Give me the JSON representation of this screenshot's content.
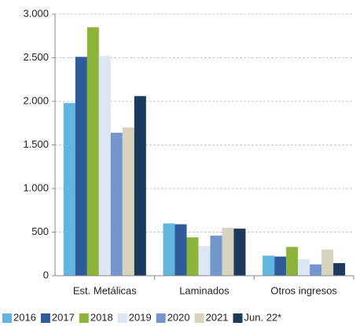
{
  "chart_data": {
    "type": "bar",
    "categories": [
      "Est. Metálicas",
      "Laminados",
      "Otros ingresos"
    ],
    "series": [
      {
        "name": "2016",
        "color": "#62b5e0",
        "values": [
          1980,
          600,
          230
        ]
      },
      {
        "name": "2017",
        "color": "#2e5c9a",
        "values": [
          2510,
          590,
          220
        ]
      },
      {
        "name": "2018",
        "color": "#8cb33a",
        "values": [
          2850,
          440,
          330
        ]
      },
      {
        "name": "2019",
        "color": "#dce6f5",
        "values": [
          2520,
          340,
          190
        ]
      },
      {
        "name": "2020",
        "color": "#7396cc",
        "values": [
          1640,
          460,
          130
        ]
      },
      {
        "name": "2021",
        "color": "#d8d3bd",
        "values": [
          1700,
          550,
          300
        ]
      },
      {
        "name": "Jun. 22*",
        "color": "#1b3a5c",
        "values": [
          2060,
          540,
          145
        ]
      }
    ],
    "ylim": [
      0,
      3000
    ],
    "yticks": [
      0,
      500,
      {
        "value": 1000,
        "label": "1.000"
      },
      {
        "value": 1500,
        "label": "1.500"
      },
      {
        "value": 2000,
        "label": "2.000"
      },
      {
        "value": 2500,
        "label": "2.500"
      },
      {
        "value": 3000,
        "label": "3.000"
      }
    ],
    "grid": true,
    "legend": "bottom"
  }
}
